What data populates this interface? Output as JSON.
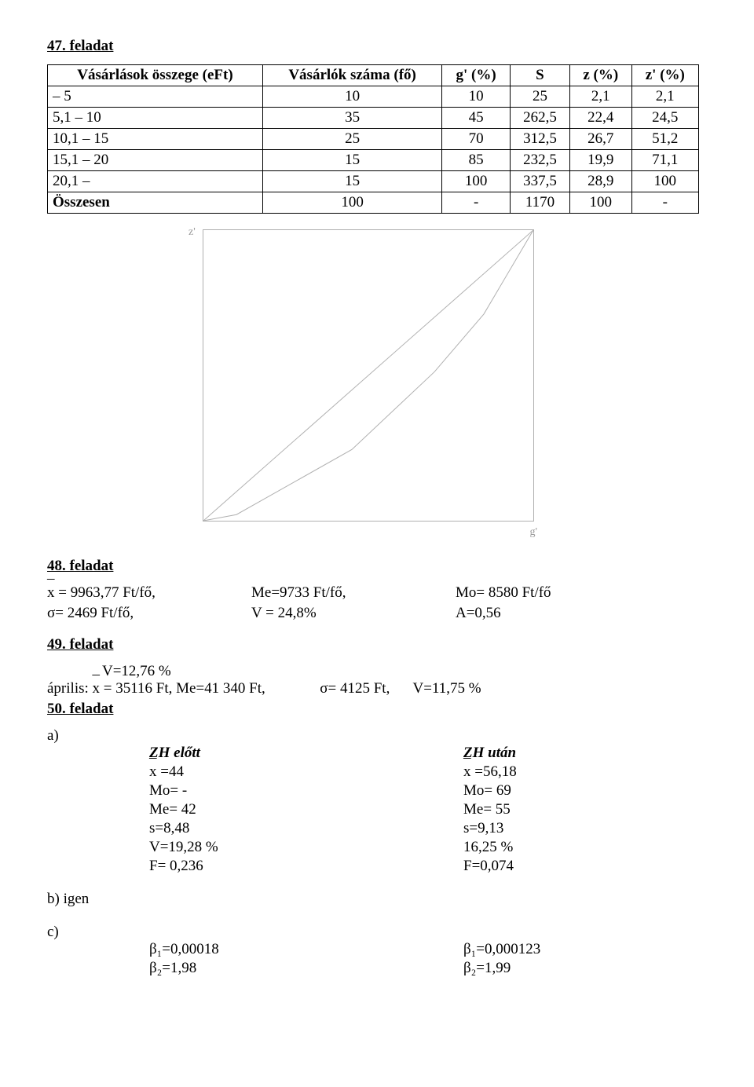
{
  "ex47": {
    "title": "47. feladat",
    "table": {
      "headers": [
        "Vásárlások összege (eFt)",
        "Vásárlók száma (fő)",
        "g' (%)",
        "S",
        "z (%)",
        "z' (%)"
      ],
      "rows": [
        [
          "– 5",
          "10",
          "10",
          "25",
          "2,1",
          "2,1"
        ],
        [
          "5,1 – 10",
          "35",
          "45",
          "262,5",
          "22,4",
          "24,5"
        ],
        [
          "10,1 – 15",
          "25",
          "70",
          "312,5",
          "26,7",
          "51,2"
        ],
        [
          "15,1 – 20",
          "15",
          "85",
          "232,5",
          "19,9",
          "71,1"
        ],
        [
          "20,1 –",
          "15",
          "100",
          "337,5",
          "28,9",
          "100"
        ],
        [
          "Összesen",
          "100",
          "-",
          "1170",
          "100",
          "-"
        ]
      ]
    },
    "chart": {
      "ylabel": "z'",
      "xlabel": "g'",
      "background": "#ffffff",
      "border_color": "#b0b0b0",
      "line_color": "#b0b0b0",
      "xlim": [
        0,
        100
      ],
      "ylim": [
        0,
        100
      ],
      "diagonal": [
        [
          0,
          0
        ],
        [
          100,
          100
        ]
      ],
      "curve": [
        [
          0,
          0
        ],
        [
          10,
          2.1
        ],
        [
          45,
          24.5
        ],
        [
          70,
          51.2
        ],
        [
          85,
          71.1
        ],
        [
          100,
          100
        ]
      ]
    }
  },
  "ex48": {
    "title": "48. feladat",
    "row1": {
      "a": "= 9963,77  Ft/fő,",
      "b": "Me=9733 Ft/fő,",
      "c": "Mo= 8580 Ft/fő"
    },
    "row2": {
      "a": "σ= 2469 Ft/fő,",
      "b": "V = 24,8%",
      "c": "A=0,56"
    }
  },
  "ex49": {
    "title": "49. feladat",
    "v": "V=12,76 %",
    "line_prefix": "április:",
    "line_mid": "= 35116  Ft,  Me=41 340 Ft,",
    "sigma": "σ= 4125 Ft,",
    "vend": "V=11,75 %"
  },
  "ex50": {
    "title": "50. feladat",
    "a_label": "a)",
    "zh_before": "ZH előtt",
    "zh_after": "ZH után",
    "before": {
      "x": "=44",
      "mo": "Mo= -",
      "me": "Me= 42",
      "s": "s=8,48",
      "v": "V=19,28 %",
      "f": "F= 0,236"
    },
    "after": {
      "x": "=56,18",
      "mo": "Mo= 69",
      "me": "Me= 55",
      "s": "s=9,13",
      "v": "16,25 %",
      "f": "F=0,074"
    },
    "b": "b)  igen",
    "c": "c)",
    "c_before": {
      "b1": "β₁=0,00018",
      "b2": "β₂=1,98"
    },
    "c_after": {
      "b1": "β₁=0,000123",
      "b2": "β₂=1,99"
    }
  }
}
